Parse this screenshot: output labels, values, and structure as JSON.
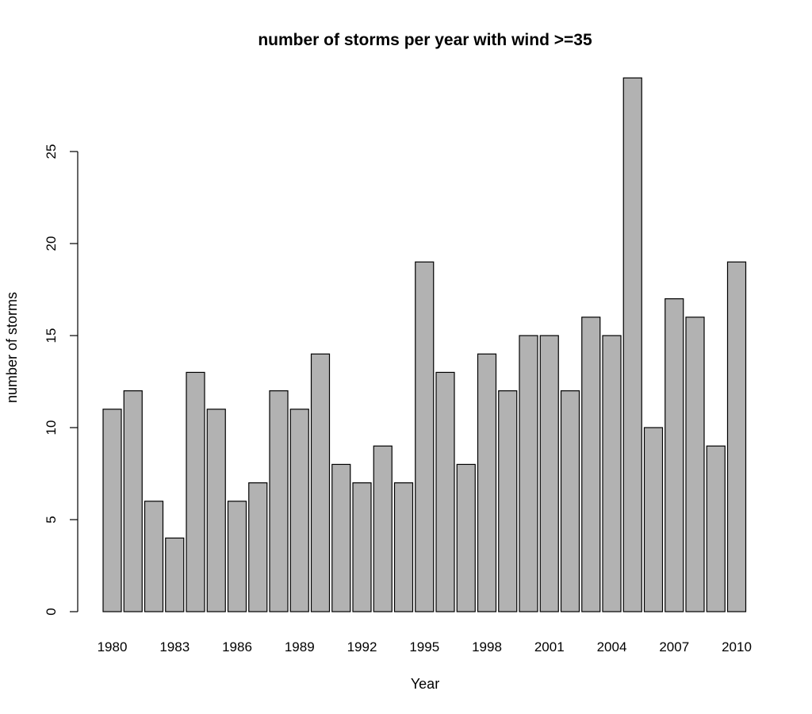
{
  "chart_data": {
    "type": "bar",
    "title": "number of storms per year with wind >=35",
    "xlabel": "Year",
    "ylabel": "number of storms",
    "categories": [
      "1980",
      "1981",
      "1982",
      "1983",
      "1984",
      "1985",
      "1986",
      "1987",
      "1988",
      "1989",
      "1990",
      "1991",
      "1992",
      "1993",
      "1994",
      "1995",
      "1996",
      "1997",
      "1998",
      "1999",
      "2000",
      "2001",
      "2002",
      "2003",
      "2004",
      "2005",
      "2006",
      "2007",
      "2008",
      "2009",
      "2010"
    ],
    "values": [
      11,
      12,
      6,
      4,
      13,
      11,
      6,
      7,
      12,
      11,
      14,
      8,
      7,
      9,
      7,
      19,
      13,
      8,
      14,
      12,
      15,
      15,
      12,
      16,
      15,
      29,
      10,
      17,
      16,
      9,
      19
    ],
    "x_tick_labels": [
      "1980",
      "1983",
      "1986",
      "1989",
      "1992",
      "1995",
      "1998",
      "2001",
      "2004",
      "2007",
      "2010"
    ],
    "y_ticks": [
      0,
      5,
      10,
      15,
      20,
      25
    ],
    "ylim": [
      0,
      29
    ],
    "grid": false,
    "bar_color": "#b2b2b2",
    "bar_edge_color": "#000000"
  }
}
